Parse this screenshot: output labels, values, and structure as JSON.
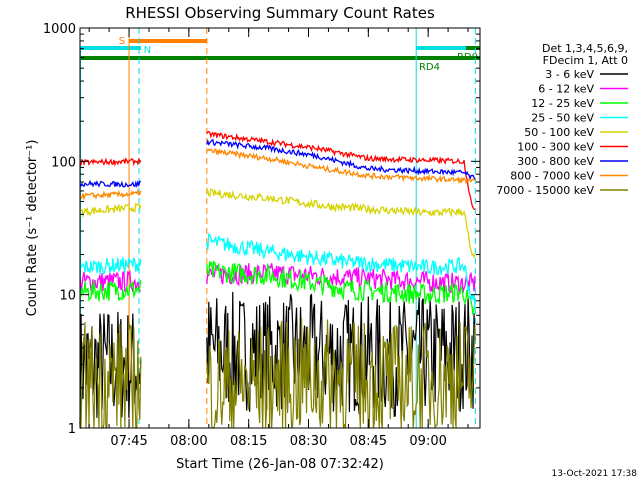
{
  "chart_data": {
    "type": "line",
    "title": "RHESSI Observing Summary Count Rates",
    "xlabel": "Start Time (26-Jan-08 07:32:42)",
    "ylabel": "Count Rate (s⁻¹ detector⁻¹)",
    "y_scale": "log",
    "ylim": [
      1,
      1000
    ],
    "xlim": [
      "07:32:42",
      "09:13:00"
    ],
    "x_ticks": [
      "07:45",
      "08:00",
      "08:15",
      "08:30",
      "08:45",
      "09:00"
    ],
    "y_ticks": [
      "1",
      "10",
      "100",
      "1000"
    ],
    "legend_header": [
      "Det 1,3,4,5,6,9,",
      "FDecim 1, Att 0"
    ],
    "legend_position": "right",
    "footer_date": "13-Oct-2021 17:38",
    "segments": [
      {
        "from": "07:32:42",
        "to": "07:48:00"
      },
      {
        "from": "08:04:30",
        "to": "09:11:50"
      }
    ],
    "series": [
      {
        "name": "3 - 6 keV",
        "color": "#000000",
        "noise": 0.45,
        "points": [
          [
            "07:33",
            3.0
          ],
          [
            "07:47",
            3.0
          ],
          [
            "08:05",
            3.8
          ],
          [
            "08:30",
            3.6
          ],
          [
            "08:55",
            3.4
          ],
          [
            "09:11",
            3.8
          ]
        ]
      },
      {
        "name": "6 - 12 keV",
        "color": "#ff00ff",
        "noise": 0.08,
        "points": [
          [
            "07:33",
            12.5
          ],
          [
            "07:47",
            12.5
          ],
          [
            "08:05",
            14.0
          ],
          [
            "08:20",
            14.5
          ],
          [
            "08:40",
            13.5
          ],
          [
            "09:00",
            12.5
          ],
          [
            "09:11",
            12.0
          ]
        ]
      },
      {
        "name": "12 - 25 keV",
        "color": "#00ff00",
        "noise": 0.08,
        "points": [
          [
            "07:33",
            10.5
          ],
          [
            "07:47",
            11.0
          ],
          [
            "08:05",
            15.0
          ],
          [
            "08:20",
            14.0
          ],
          [
            "08:40",
            11.0
          ],
          [
            "09:00",
            10.0
          ],
          [
            "09:09",
            10.5
          ],
          [
            "09:11",
            7.5
          ]
        ]
      },
      {
        "name": "25 - 50 keV",
        "color": "#00ffff",
        "noise": 0.06,
        "points": [
          [
            "07:33",
            16.0
          ],
          [
            "07:47",
            17.0
          ],
          [
            "08:05",
            25.0
          ],
          [
            "08:20",
            21.0
          ],
          [
            "08:40",
            17.5
          ],
          [
            "09:00",
            16.0
          ],
          [
            "09:09",
            16.5
          ],
          [
            "09:11",
            9.0
          ]
        ]
      },
      {
        "name": "50 - 100 keV",
        "color": "#d4d400",
        "noise": 0.03,
        "points": [
          [
            "07:33",
            42.0
          ],
          [
            "07:47",
            45.0
          ],
          [
            "08:05",
            58.0
          ],
          [
            "08:20",
            53.0
          ],
          [
            "08:35",
            46.0
          ],
          [
            "09:00",
            41.0
          ],
          [
            "09:09",
            42.0
          ],
          [
            "09:11",
            19.0
          ]
        ]
      },
      {
        "name": "100 - 300 keV",
        "color": "#ff0000",
        "noise": 0.02,
        "points": [
          [
            "07:33",
            98.0
          ],
          [
            "07:47",
            100.0
          ],
          [
            "08:05",
            160.0
          ],
          [
            "08:20",
            140.0
          ],
          [
            "08:32",
            125.0
          ],
          [
            "08:45",
            105.0
          ],
          [
            "09:09",
            100.0
          ],
          [
            "09:11",
            45.0
          ]
        ]
      },
      {
        "name": "300 - 800 keV",
        "color": "#0000ff",
        "noise": 0.02,
        "points": [
          [
            "07:33",
            68.0
          ],
          [
            "07:47",
            67.0
          ],
          [
            "08:05",
            140.0
          ],
          [
            "08:20",
            125.0
          ],
          [
            "08:32",
            110.0
          ],
          [
            "08:45",
            88.0
          ],
          [
            "09:09",
            82.0
          ],
          [
            "09:11",
            75.0
          ]
        ]
      },
      {
        "name": "800 - 7000 keV",
        "color": "#ff8800",
        "noise": 0.02,
        "points": [
          [
            "07:33",
            55.0
          ],
          [
            "07:47",
            57.0
          ],
          [
            "08:05",
            120.0
          ],
          [
            "08:20",
            105.0
          ],
          [
            "08:32",
            90.0
          ],
          [
            "08:45",
            78.0
          ],
          [
            "09:09",
            72.0
          ],
          [
            "09:11",
            70.0
          ]
        ]
      },
      {
        "name": "7000 - 15000 keV",
        "color": "#808000",
        "noise": 0.45,
        "points": [
          [
            "07:33",
            2.3
          ],
          [
            "07:47",
            2.3
          ],
          [
            "08:05",
            2.0
          ],
          [
            "08:30",
            2.4
          ],
          [
            "08:55",
            2.2
          ],
          [
            "09:11",
            2.5
          ]
        ]
      }
    ],
    "flags": [
      {
        "label": "S",
        "color": "#ff8000",
        "from": "07:45:00",
        "to": "08:04:30",
        "band": "high"
      },
      {
        "label": "N",
        "color": "#00e0e0",
        "from": "07:32:42",
        "to": "07:48:00",
        "band": "mid"
      },
      {
        "label": "",
        "color": "#00e0e0",
        "from": "08:57:00",
        "to": "09:11:50",
        "band": "mid"
      },
      {
        "label": "RD0",
        "color": "#008000",
        "from": "09:09:30",
        "to": "09:13:00",
        "band": "mid"
      },
      {
        "label": "RD4",
        "color": "#008000",
        "from": "07:32:42",
        "to": "09:13:00",
        "band": "low"
      }
    ],
    "markers": [
      {
        "time": "07:45:00",
        "color": "#ff8000",
        "style": "solid"
      },
      {
        "time": "07:47:30",
        "color": "#00e0e0",
        "style": "dashed"
      },
      {
        "time": "08:04:30",
        "color": "#ff8000",
        "style": "dashed"
      },
      {
        "time": "08:57:00",
        "color": "#00e0e0",
        "style": "solid"
      },
      {
        "time": "09:11:50",
        "color": "#00e0e0",
        "style": "dashed"
      }
    ],
    "grid": false
  }
}
